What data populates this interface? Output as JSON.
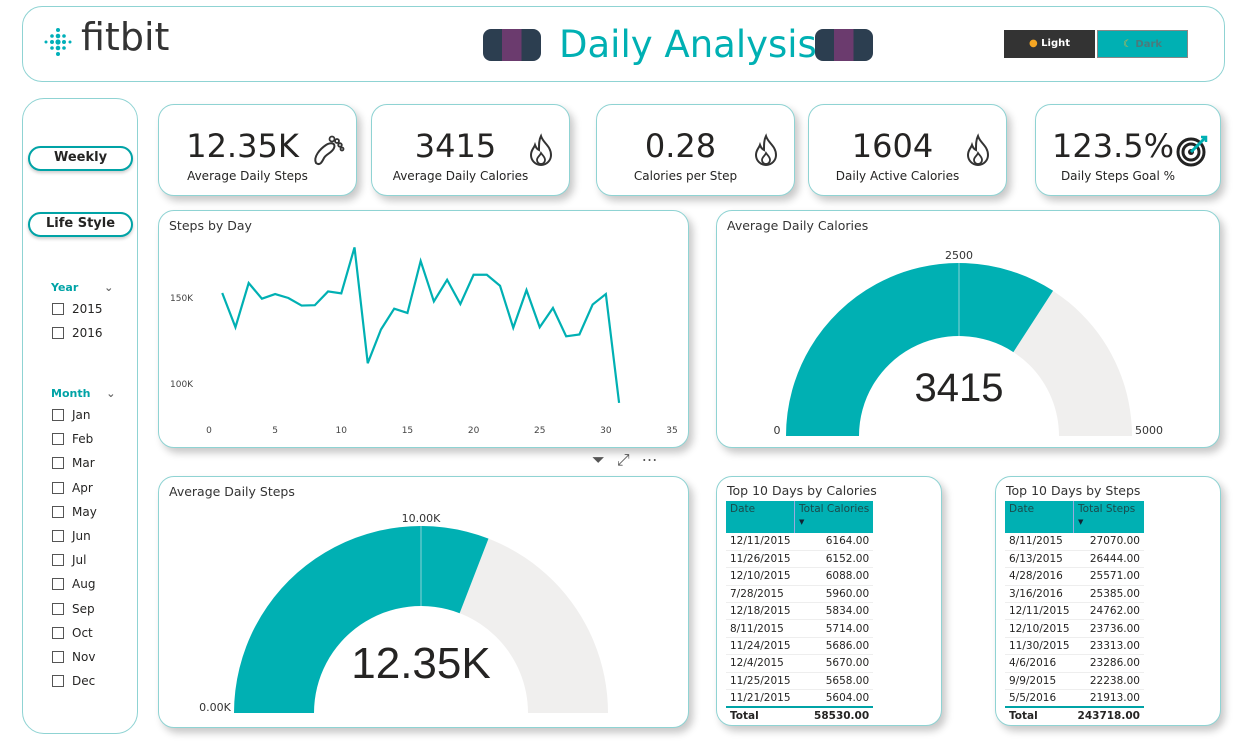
{
  "header": {
    "logo": "fitbit",
    "title": "Daily Analysis",
    "light_label": "Light",
    "dark_label": "Dark"
  },
  "colors": {
    "accent": "#00b0b3",
    "track": "#f0efee"
  },
  "sidebar": {
    "weekly": "Weekly",
    "lifestyle": "Life Style",
    "year_title": "Year",
    "years": [
      "2015",
      "2016"
    ],
    "month_title": "Month",
    "months": [
      "Jan",
      "Feb",
      "Mar",
      "Apr",
      "May",
      "Jun",
      "Jul",
      "Aug",
      "Sep",
      "Oct",
      "Nov",
      "Dec"
    ]
  },
  "kpis": [
    {
      "value": "12.35K",
      "label": "Average Daily Steps",
      "icon": "footprint-icon"
    },
    {
      "value": "3415",
      "label": "Average Daily Calories",
      "icon": "flame-icon"
    },
    {
      "value": "0.28",
      "label": "Calories per Step",
      "icon": "flame-icon"
    },
    {
      "value": "1604",
      "label": "Daily Active Calories",
      "icon": "flame-icon"
    },
    {
      "value": "123.5%",
      "label": "Daily Steps Goal %",
      "icon": "target-icon"
    }
  ],
  "chart_data": [
    {
      "type": "line",
      "title": "Steps by Day",
      "xlabel": "",
      "ylabel": "",
      "x": [
        1,
        2,
        3,
        4,
        5,
        6,
        7,
        8,
        9,
        10,
        11,
        12,
        13,
        14,
        15,
        16,
        17,
        18,
        19,
        20,
        21,
        22,
        23,
        24,
        25,
        26,
        27,
        28,
        29,
        30,
        31
      ],
      "values": [
        152.9,
        133,
        158.7,
        149.6,
        152.3,
        150,
        145.6,
        145.8,
        153.8,
        152.7,
        179.4,
        112.1,
        131.7,
        143.8,
        141.3,
        171.5,
        148,
        160.6,
        146.5,
        163.5,
        163.5,
        157.1,
        132.7,
        154.6,
        133,
        144.2,
        127.7,
        128.8,
        146.2,
        152.3,
        89
      ],
      "value_unit": "K",
      "xlim": [
        0,
        35
      ],
      "ylim": [
        85,
        185
      ],
      "xticks": [
        "0",
        "5",
        "10",
        "15",
        "20",
        "25",
        "30",
        "35"
      ],
      "yticks": [
        {
          "v": 150,
          "label": "150K"
        },
        {
          "v": 100,
          "label": "100K"
        }
      ]
    },
    {
      "type": "gauge",
      "title": "Average Daily Calories",
      "value": 3415,
      "value_label": "3415",
      "min": 0,
      "max": 5000,
      "target": 2500,
      "min_label": "0",
      "max_label": "5000",
      "target_label": "2500"
    },
    {
      "type": "gauge",
      "title": "Average Daily Steps",
      "value": 12350,
      "value_label": "12.35K",
      "min": 0,
      "max": 20000,
      "target": 10000,
      "min_label": "0.00K",
      "target_label": "10.00K"
    }
  ],
  "tables": [
    {
      "title": "Top 10 Days by Calories",
      "headers": [
        "Date",
        "Total Calories"
      ],
      "rows": [
        [
          "12/11/2015",
          "6164.00"
        ],
        [
          "11/26/2015",
          "6152.00"
        ],
        [
          "12/10/2015",
          "6088.00"
        ],
        [
          "7/28/2015",
          "5960.00"
        ],
        [
          "12/18/2015",
          "5834.00"
        ],
        [
          "8/11/2015",
          "5714.00"
        ],
        [
          "11/24/2015",
          "5686.00"
        ],
        [
          "12/4/2015",
          "5670.00"
        ],
        [
          "11/25/2015",
          "5658.00"
        ],
        [
          "11/21/2015",
          "5604.00"
        ]
      ],
      "total": [
        "Total",
        "58530.00"
      ]
    },
    {
      "title": "Top 10 Days by Steps",
      "headers": [
        "Date",
        "Total Steps"
      ],
      "rows": [
        [
          "8/11/2015",
          "27070.00"
        ],
        [
          "6/13/2015",
          "26444.00"
        ],
        [
          "4/28/2016",
          "25571.00"
        ],
        [
          "3/16/2016",
          "25385.00"
        ],
        [
          "12/11/2015",
          "24762.00"
        ],
        [
          "12/10/2015",
          "23736.00"
        ],
        [
          "11/30/2015",
          "23313.00"
        ],
        [
          "4/6/2016",
          "23286.00"
        ],
        [
          "9/9/2015",
          "22238.00"
        ],
        [
          "5/5/2016",
          "21913.00"
        ]
      ],
      "total": [
        "Total",
        "243718.00"
      ]
    }
  ]
}
